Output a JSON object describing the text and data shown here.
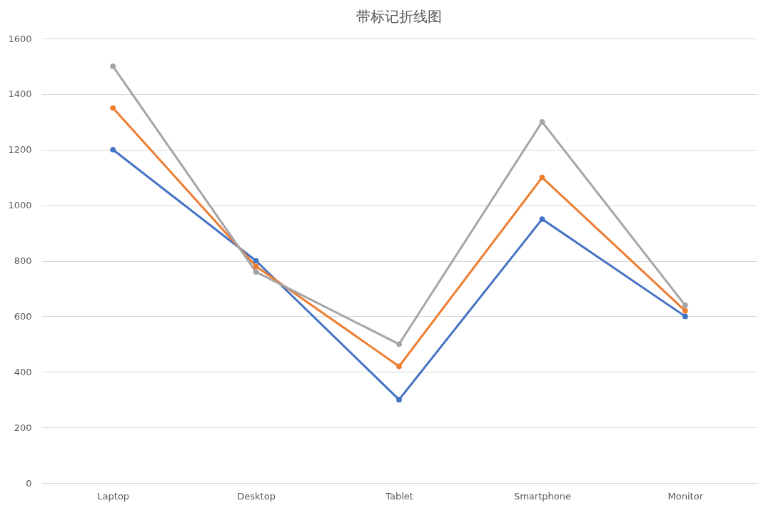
{
  "chart_data": {
    "type": "line",
    "title": "带标记折线图",
    "categories": [
      "Laptop",
      "Desktop",
      "Tablet",
      "Smartphone",
      "Monitor"
    ],
    "series": [
      {
        "color": "#4472c4",
        "values": [
          1200,
          800,
          300,
          950,
          600
        ]
      },
      {
        "color": "#ed7d31",
        "values": [
          1350,
          780,
          420,
          1100,
          620
        ]
      },
      {
        "color": "#a5a5a5",
        "values": [
          1500,
          760,
          500,
          1300,
          640
        ]
      }
    ],
    "ylim": [
      0,
      1600
    ],
    "yticks": [
      0,
      200,
      400,
      600,
      800,
      1000,
      1200,
      1400,
      1600
    ],
    "grid": "y",
    "legend": false,
    "marker": "circle",
    "line_style": "solid"
  }
}
